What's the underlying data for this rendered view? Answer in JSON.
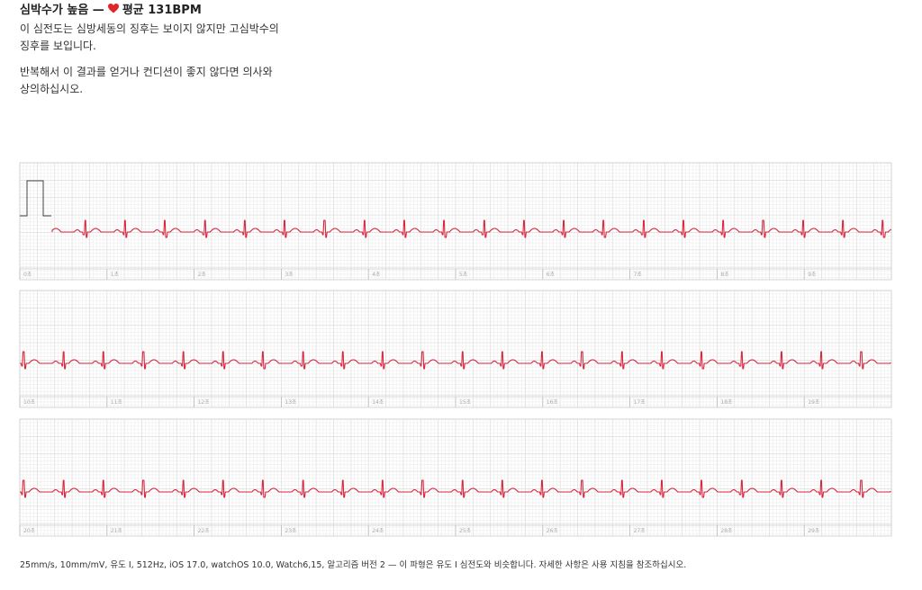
{
  "header": {
    "title": "심박수가 높음 —",
    "average": "평균 131BPM"
  },
  "paragraphs": [
    "이 심전도는 심방세동의 징후는 보이지 않지만 고심박수의 징후를 보입니다.",
    "반복해서 이 결과를 얻거나 컨디션이 좋지 않다면 의사와 상의하십시오."
  ],
  "strips": [
    {
      "labels": [
        "0초",
        "1초",
        "2초",
        "3초",
        "4초",
        "5초",
        "6초",
        "7초",
        "8초",
        "9초"
      ]
    },
    {
      "labels": [
        "10초",
        "11초",
        "12초",
        "13초",
        "14초",
        "15초",
        "16초",
        "17초",
        "18초",
        "19초"
      ]
    },
    {
      "labels": [
        "20초",
        "21초",
        "22초",
        "23초",
        "24초",
        "25초",
        "26초",
        "27초",
        "28초",
        "29초"
      ]
    }
  ],
  "footer": "25mm/s, 10mm/mV, 유도 I, 512Hz, iOS 17.0, watchOS 10.0, Watch6,15, 알고리즘 버전 2 — 이 파형은 유도 I 심전도와 비슷합니다. 자세한 사항은 사용 지침을 참조하십시오."
}
